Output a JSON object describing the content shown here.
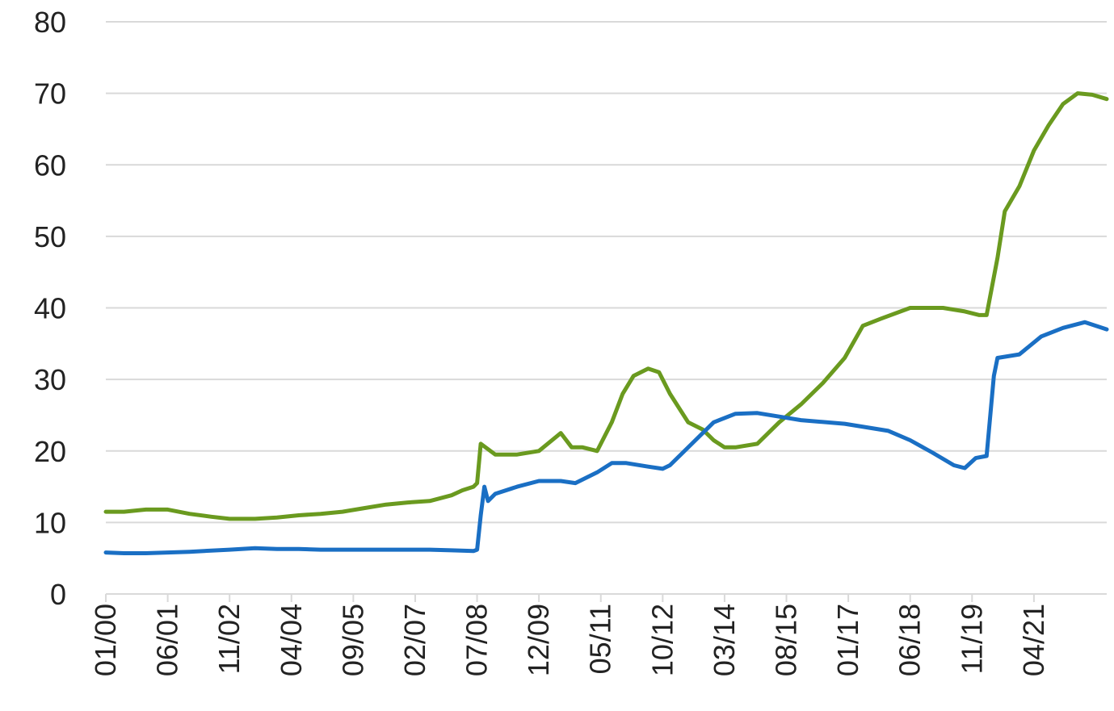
{
  "chart_data": {
    "type": "line",
    "title": "",
    "xlabel": "",
    "ylabel": "",
    "ylim": [
      0,
      80
    ],
    "yticks": [
      0,
      10,
      20,
      30,
      40,
      50,
      60,
      70,
      80
    ],
    "grid": true,
    "legend": "none",
    "x_tick_labels": [
      "01/00",
      "06/01",
      "11/02",
      "04/04",
      "09/05",
      "02/07",
      "07/08",
      "12/09",
      "05/11",
      "10/12",
      "03/14",
      "08/15",
      "01/17",
      "06/18",
      "11/19",
      "04/21"
    ],
    "x_range": [
      "01/00",
      "12/22"
    ],
    "series": [
      {
        "color": "#6a9a1f",
        "points": [
          [
            "01/00",
            11.5
          ],
          [
            "06/00",
            11.5
          ],
          [
            "12/00",
            11.8
          ],
          [
            "06/01",
            11.8
          ],
          [
            "12/01",
            11.2
          ],
          [
            "06/02",
            10.8
          ],
          [
            "11/02",
            10.5
          ],
          [
            "06/03",
            10.5
          ],
          [
            "12/03",
            10.7
          ],
          [
            "06/04",
            11.0
          ],
          [
            "12/04",
            11.2
          ],
          [
            "06/05",
            11.5
          ],
          [
            "12/05",
            12.0
          ],
          [
            "06/06",
            12.5
          ],
          [
            "12/06",
            12.8
          ],
          [
            "06/07",
            13.0
          ],
          [
            "12/07",
            13.8
          ],
          [
            "03/08",
            14.5
          ],
          [
            "06/08",
            15.0
          ],
          [
            "07/08",
            15.5
          ],
          [
            "08/08",
            21.0
          ],
          [
            "12/08",
            19.5
          ],
          [
            "06/09",
            19.5
          ],
          [
            "12/09",
            20.0
          ],
          [
            "06/10",
            22.5
          ],
          [
            "09/10",
            20.5
          ],
          [
            "12/10",
            20.5
          ],
          [
            "04/11",
            20.0
          ],
          [
            "08/11",
            24.0
          ],
          [
            "11/11",
            28.0
          ],
          [
            "02/12",
            30.5
          ],
          [
            "06/12",
            31.5
          ],
          [
            "09/12",
            31.0
          ],
          [
            "12/12",
            28.0
          ],
          [
            "05/13",
            24.0
          ],
          [
            "09/13",
            23.0
          ],
          [
            "12/13",
            21.5
          ],
          [
            "03/14",
            20.5
          ],
          [
            "06/14",
            20.5
          ],
          [
            "12/14",
            21.0
          ],
          [
            "06/15",
            24.0
          ],
          [
            "12/15",
            26.5
          ],
          [
            "06/16",
            29.5
          ],
          [
            "12/16",
            33.0
          ],
          [
            "05/17",
            37.5
          ],
          [
            "10/17",
            38.5
          ],
          [
            "06/18",
            40.0
          ],
          [
            "10/18",
            40.0
          ],
          [
            "03/19",
            40.0
          ],
          [
            "09/19",
            39.5
          ],
          [
            "01/20",
            39.0
          ],
          [
            "03/20",
            39.0
          ],
          [
            "06/20",
            47.0
          ],
          [
            "08/20",
            53.5
          ],
          [
            "12/20",
            57.0
          ],
          [
            "04/21",
            62.0
          ],
          [
            "08/21",
            65.5
          ],
          [
            "12/21",
            68.5
          ],
          [
            "04/22",
            70.0
          ],
          [
            "08/22",
            69.8
          ],
          [
            "12/22",
            69.2
          ]
        ]
      },
      {
        "color": "#1a6fc4",
        "points": [
          [
            "01/00",
            5.8
          ],
          [
            "06/00",
            5.7
          ],
          [
            "12/00",
            5.7
          ],
          [
            "06/01",
            5.8
          ],
          [
            "12/01",
            5.9
          ],
          [
            "11/02",
            6.2
          ],
          [
            "06/03",
            6.4
          ],
          [
            "12/03",
            6.3
          ],
          [
            "06/04",
            6.3
          ],
          [
            "12/04",
            6.2
          ],
          [
            "06/05",
            6.2
          ],
          [
            "06/06",
            6.2
          ],
          [
            "06/07",
            6.2
          ],
          [
            "12/07",
            6.1
          ],
          [
            "06/08",
            6.0
          ],
          [
            "07/08",
            6.2
          ],
          [
            "08/08",
            11.0
          ],
          [
            "09/08",
            15.0
          ],
          [
            "10/08",
            13.0
          ],
          [
            "12/08",
            14.0
          ],
          [
            "06/09",
            15.0
          ],
          [
            "12/09",
            15.8
          ],
          [
            "06/10",
            15.8
          ],
          [
            "10/10",
            15.5
          ],
          [
            "04/11",
            17.0
          ],
          [
            "08/11",
            18.3
          ],
          [
            "12/11",
            18.3
          ],
          [
            "06/12",
            17.8
          ],
          [
            "10/12",
            17.5
          ],
          [
            "12/12",
            18.0
          ],
          [
            "06/13",
            21.0
          ],
          [
            "12/13",
            24.0
          ],
          [
            "06/14",
            25.2
          ],
          [
            "12/14",
            25.3
          ],
          [
            "06/15",
            24.8
          ],
          [
            "12/15",
            24.3
          ],
          [
            "12/16",
            23.8
          ],
          [
            "12/17",
            22.8
          ],
          [
            "06/18",
            21.5
          ],
          [
            "12/18",
            19.8
          ],
          [
            "06/19",
            18.0
          ],
          [
            "09/19",
            17.6
          ],
          [
            "12/19",
            19.0
          ],
          [
            "03/20",
            19.3
          ],
          [
            "05/20",
            30.5
          ],
          [
            "06/20",
            33.0
          ],
          [
            "12/20",
            33.5
          ],
          [
            "06/21",
            36.0
          ],
          [
            "12/21",
            37.2
          ],
          [
            "06/22",
            38.0
          ],
          [
            "12/22",
            37.0
          ]
        ]
      }
    ]
  }
}
